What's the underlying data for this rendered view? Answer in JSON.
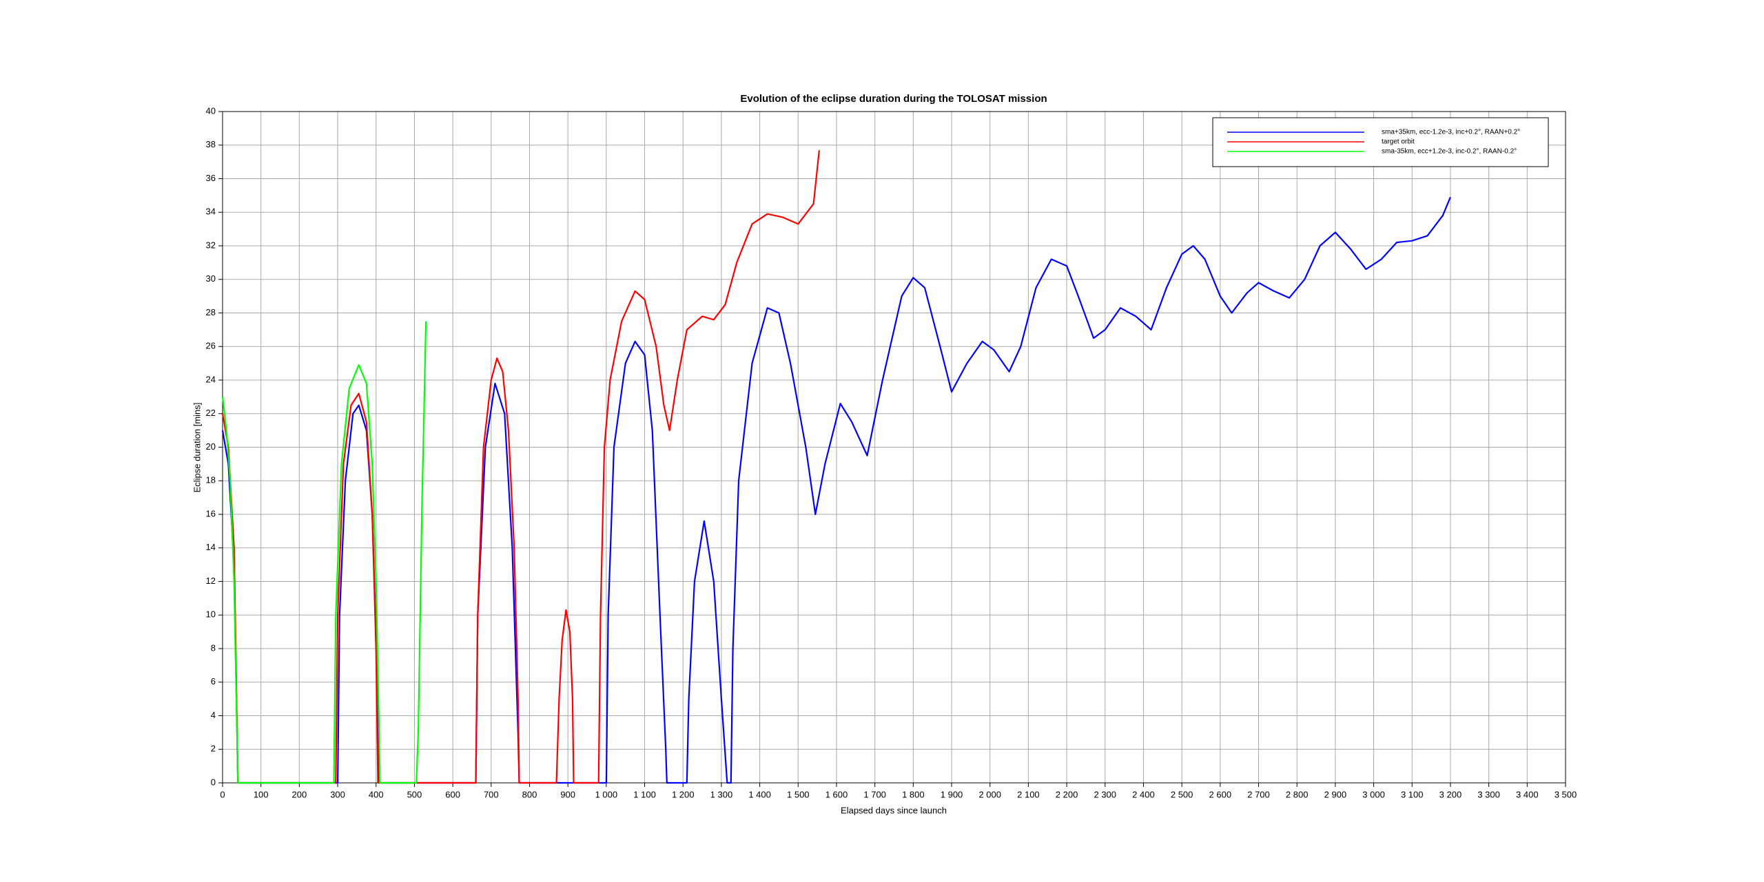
{
  "chart_data": {
    "type": "line",
    "title": "Evolution of the eclipse duration during the TOLOSAT mission",
    "x_label": "Elapsed days since launch",
    "y_label": "Eclipse duration [mins]",
    "xlim": [
      0,
      3500
    ],
    "ylim": [
      0,
      40
    ],
    "grid": true,
    "legend": "upper right",
    "xticks": [
      0,
      100,
      200,
      300,
      400,
      500,
      600,
      700,
      800,
      900,
      {
        "value": 1000,
        "label": "1 000"
      },
      {
        "value": 1100,
        "label": "1 100"
      },
      {
        "value": 1200,
        "label": "1 200"
      },
      {
        "value": 1300,
        "label": "1 300"
      },
      {
        "value": 1400,
        "label": "1 400"
      },
      {
        "value": 1500,
        "label": "1 500"
      },
      {
        "value": 1600,
        "label": "1 600"
      },
      {
        "value": 1700,
        "label": "1 700"
      },
      {
        "value": 1800,
        "label": "1 800"
      },
      {
        "value": 1900,
        "label": "1 900"
      },
      {
        "value": 2000,
        "label": "2 000"
      },
      {
        "value": 2100,
        "label": "2 100"
      },
      {
        "value": 2200,
        "label": "2 200"
      },
      {
        "value": 2300,
        "label": "2 300"
      },
      {
        "value": 2400,
        "label": "2 400"
      },
      {
        "value": 2500,
        "label": "2 500"
      },
      {
        "value": 2600,
        "label": "2 600"
      },
      {
        "value": 2700,
        "label": "2 700"
      },
      {
        "value": 2800,
        "label": "2 800"
      },
      {
        "value": 2900,
        "label": "2 900"
      },
      {
        "value": 3000,
        "label": "3 000"
      },
      {
        "value": 3100,
        "label": "3 100"
      },
      {
        "value": 3200,
        "label": "3 200"
      },
      {
        "value": 3300,
        "label": "3 300"
      },
      {
        "value": 3400,
        "label": "3 400"
      },
      {
        "value": 3500,
        "label": "3 500"
      }
    ],
    "yticks": [
      0,
      2,
      4,
      6,
      8,
      10,
      12,
      14,
      16,
      18,
      20,
      22,
      24,
      26,
      28,
      30,
      32,
      34,
      36,
      38,
      40
    ],
    "series": [
      {
        "name": "sma+35km, ecc-1.2e-3, inc+0.2°, RAAN+0.2°",
        "color": "#0000ff",
        "x": [
          0,
          15,
          30,
          40,
          200,
          300,
          305,
          320,
          340,
          355,
          375,
          390,
          405,
          408,
          660,
          665,
          685,
          710,
          735,
          755,
          770,
          773,
          1000,
          1005,
          1020,
          1050,
          1075,
          1100,
          1120,
          1140,
          1155,
          1158,
          1210,
          1215,
          1230,
          1255,
          1280,
          1300,
          1315,
          1325,
          1330,
          1345,
          1380,
          1420,
          1450,
          1480,
          1520,
          1545,
          1570,
          1610,
          1640,
          1680,
          1720,
          1770,
          1800,
          1830,
          1870,
          1900,
          1940,
          1980,
          2010,
          2050,
          2080,
          2120,
          2160,
          2200,
          2230,
          2270,
          2300,
          2340,
          2380,
          2420,
          2460,
          2500,
          2530,
          2560,
          2600,
          2630,
          2670,
          2700,
          2740,
          2780,
          2820,
          2860,
          2900,
          2940,
          2980,
          3020,
          3060,
          3100,
          3140,
          3180,
          3200
        ],
        "values": [
          21,
          19,
          13,
          0,
          0,
          0,
          10,
          18,
          22,
          22.5,
          21,
          16,
          5,
          0,
          0,
          10,
          20,
          23.8,
          22,
          14,
          3,
          0,
          0,
          10,
          20,
          25,
          26.3,
          25.5,
          21,
          10,
          2,
          0,
          0,
          5,
          12,
          15.6,
          12,
          5,
          0,
          0,
          8,
          18,
          25,
          28.3,
          28,
          25,
          20,
          16,
          19,
          22.6,
          21.5,
          19.5,
          24,
          29,
          30.1,
          29.5,
          26,
          23.3,
          25,
          26.3,
          25.8,
          24.5,
          26,
          29.5,
          31.2,
          30.8,
          29,
          26.5,
          27,
          28.3,
          27.8,
          27,
          29.5,
          31.5,
          32,
          31.2,
          29,
          28,
          29.2,
          29.8,
          29.3,
          28.9,
          30,
          32,
          32.8,
          31.8,
          30.6,
          31.2,
          32.2,
          32.3,
          32.6,
          33.8,
          34.9
        ]
      },
      {
        "name": "target orbit",
        "color": "#ff0000",
        "x": [
          0,
          15,
          30,
          40,
          200,
          295,
          300,
          315,
          335,
          355,
          375,
          390,
          400,
          405,
          500,
          660,
          665,
          680,
          700,
          715,
          730,
          745,
          760,
          770,
          773,
          870,
          877,
          885,
          895,
          905,
          912,
          915,
          980,
          985,
          995,
          1010,
          1040,
          1075,
          1100,
          1130,
          1150,
          1165,
          1185,
          1210,
          1250,
          1280,
          1310,
          1340,
          1380,
          1420,
          1460,
          1500,
          1540,
          1555
        ],
        "values": [
          22,
          20,
          14,
          0,
          0,
          0,
          10,
          19,
          22.5,
          23.2,
          21.5,
          16,
          8,
          0,
          0,
          0,
          10,
          20,
          24,
          25.3,
          24.5,
          21,
          14,
          5,
          0,
          0,
          5,
          8.5,
          10.3,
          9,
          5,
          0,
          0,
          10,
          20,
          24,
          27.5,
          29.3,
          28.8,
          26,
          22.5,
          21,
          24,
          27,
          27.8,
          27.6,
          28.5,
          31,
          33.3,
          33.9,
          33.7,
          33.3,
          34.5,
          37.7
        ]
      },
      {
        "name": "sma-35km, ecc+1.2e-3, inc-0.2°, RAAN-0.2°",
        "color": "#00ff00",
        "x": [
          0,
          10,
          20,
          30,
          40,
          100,
          200,
          290,
          295,
          310,
          330,
          355,
          375,
          390,
          400,
          408,
          410,
          450,
          505,
          510,
          515,
          520,
          525,
          530
        ],
        "values": [
          23,
          21,
          18,
          12,
          0,
          0,
          0,
          0,
          10,
          19,
          23.5,
          24.9,
          23.8,
          19,
          12,
          3,
          0,
          0,
          0,
          3,
          10,
          17,
          22,
          27.5
        ]
      }
    ]
  }
}
